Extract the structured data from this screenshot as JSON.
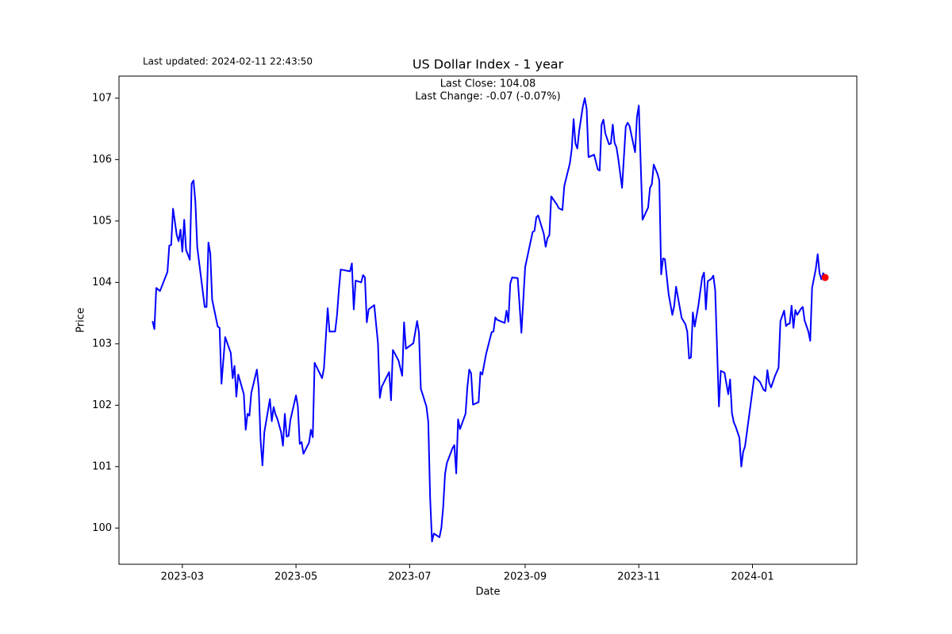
{
  "chart_data": {
    "type": "line",
    "title": "US Dollar Index - 1 year",
    "subtitle": "Last updated: 2024-02-11 22:43:50",
    "annotations": [
      "Last Close: 104.08",
      "Last Change: -0.07 (-0.07%)"
    ],
    "xlabel": "Date",
    "ylabel": "Price",
    "color": "#0000ff",
    "x": [
      "2023-02-13",
      "2023-02-14",
      "2023-02-15",
      "2023-02-17",
      "2023-02-21",
      "2023-02-22",
      "2023-02-23",
      "2023-02-24",
      "2023-02-26",
      "2023-02-27",
      "2023-02-28",
      "2023-03-01",
      "2023-03-02",
      "2023-03-03",
      "2023-03-05",
      "2023-03-06",
      "2023-03-07",
      "2023-03-08",
      "2023-03-09",
      "2023-03-13",
      "2023-03-14",
      "2023-03-15",
      "2023-03-16",
      "2023-03-17",
      "2023-03-20",
      "2023-03-21",
      "2023-03-22",
      "2023-03-24",
      "2023-03-27",
      "2023-03-28",
      "2023-03-29",
      "2023-03-30",
      "2023-03-31",
      "2023-04-03",
      "2023-04-04",
      "2023-04-05",
      "2023-04-06",
      "2023-04-07",
      "2023-04-10",
      "2023-04-11",
      "2023-04-12",
      "2023-04-13",
      "2023-04-14",
      "2023-04-17",
      "2023-04-18",
      "2023-04-19",
      "2023-04-20",
      "2023-04-21",
      "2023-04-23",
      "2023-04-24",
      "2023-04-25",
      "2023-04-26",
      "2023-04-27",
      "2023-04-28",
      "2023-05-01",
      "2023-05-02",
      "2023-05-03",
      "2023-05-04",
      "2023-05-05",
      "2023-05-08",
      "2023-05-09",
      "2023-05-10",
      "2023-05-11",
      "2023-05-15",
      "2023-05-16",
      "2023-05-18",
      "2023-05-19",
      "2023-05-22",
      "2023-05-23",
      "2023-05-24",
      "2023-05-25",
      "2023-05-30",
      "2023-05-31",
      "2023-06-01",
      "2023-06-02",
      "2023-06-05",
      "2023-06-06",
      "2023-06-07",
      "2023-06-08",
      "2023-06-09",
      "2023-06-12",
      "2023-06-14",
      "2023-06-15",
      "2023-06-16",
      "2023-06-20",
      "2023-06-21",
      "2023-06-22",
      "2023-06-25",
      "2023-06-27",
      "2023-06-28",
      "2023-06-29",
      "2023-07-03",
      "2023-07-05",
      "2023-07-06",
      "2023-07-07",
      "2023-07-10",
      "2023-07-11",
      "2023-07-12",
      "2023-07-13",
      "2023-07-14",
      "2023-07-17",
      "2023-07-18",
      "2023-07-19",
      "2023-07-20",
      "2023-07-21",
      "2023-07-24",
      "2023-07-25",
      "2023-07-26",
      "2023-07-27",
      "2023-07-28",
      "2023-07-31",
      "2023-08-01",
      "2023-08-02",
      "2023-08-03",
      "2023-08-04",
      "2023-08-07",
      "2023-08-08",
      "2023-08-09",
      "2023-08-11",
      "2023-08-14",
      "2023-08-15",
      "2023-08-16",
      "2023-08-17",
      "2023-08-21",
      "2023-08-22",
      "2023-08-23",
      "2023-08-24",
      "2023-08-25",
      "2023-08-28",
      "2023-08-30",
      "2023-09-01",
      "2023-09-05",
      "2023-09-06",
      "2023-09-07",
      "2023-09-08",
      "2023-09-11",
      "2023-09-12",
      "2023-09-13",
      "2023-09-14",
      "2023-09-15",
      "2023-09-18",
      "2023-09-19",
      "2023-09-21",
      "2023-09-22",
      "2023-09-25",
      "2023-09-26",
      "2023-09-27",
      "2023-09-28",
      "2023-09-29",
      "2023-09-30",
      "2023-10-02",
      "2023-10-03",
      "2023-10-04",
      "2023-10-05",
      "2023-10-08",
      "2023-10-10",
      "2023-10-11",
      "2023-10-12",
      "2023-10-13",
      "2023-10-14",
      "2023-10-16",
      "2023-10-17",
      "2023-10-18",
      "2023-10-19",
      "2023-10-20",
      "2023-10-21",
      "2023-10-23",
      "2023-10-25",
      "2023-10-26",
      "2023-10-27",
      "2023-10-30",
      "2023-10-31",
      "2023-11-01",
      "2023-11-03",
      "2023-11-06",
      "2023-11-07",
      "2023-11-08",
      "2023-11-09",
      "2023-11-11",
      "2023-11-12",
      "2023-11-13",
      "2023-11-14",
      "2023-11-15",
      "2023-11-17",
      "2023-11-19",
      "2023-11-20",
      "2023-11-21",
      "2023-11-24",
      "2023-11-26",
      "2023-11-27",
      "2023-11-28",
      "2023-11-29",
      "2023-11-30",
      "2023-12-01",
      "2023-12-03",
      "2023-12-05",
      "2023-12-06",
      "2023-12-07",
      "2023-12-08",
      "2023-12-10",
      "2023-12-11",
      "2023-12-12",
      "2023-12-14",
      "2023-12-15",
      "2023-12-17",
      "2023-12-19",
      "2023-12-20",
      "2023-12-21",
      "2023-12-22",
      "2023-12-23",
      "2023-12-25",
      "2023-12-26",
      "2023-12-27",
      "2023-12-28",
      "2023-12-31",
      "2024-01-02",
      "2024-01-05",
      "2024-01-07",
      "2024-01-08",
      "2024-01-09",
      "2024-01-10",
      "2024-01-11",
      "2024-01-13",
      "2024-01-15",
      "2024-01-16",
      "2024-01-18",
      "2024-01-19",
      "2024-01-20",
      "2024-01-21",
      "2024-01-22",
      "2024-01-23",
      "2024-01-24",
      "2024-01-25",
      "2024-01-27",
      "2024-01-28",
      "2024-01-29",
      "2024-01-31",
      "2024-02-01",
      "2024-02-02",
      "2024-02-04",
      "2024-02-05",
      "2024-02-06",
      "2024-02-07",
      "2024-02-08",
      "2024-02-09"
    ],
    "values": [
      103.37,
      103.24,
      103.91,
      103.86,
      104.17,
      104.6,
      104.61,
      105.2,
      104.77,
      104.67,
      104.86,
      104.5,
      105.02,
      104.53,
      104.37,
      105.61,
      105.66,
      105.31,
      104.57,
      103.6,
      103.6,
      104.65,
      104.47,
      103.72,
      103.28,
      103.26,
      102.35,
      103.11,
      102.85,
      102.44,
      102.64,
      102.14,
      102.5,
      102.18,
      101.6,
      101.86,
      101.83,
      102.2,
      102.58,
      102.27,
      101.43,
      101.02,
      101.56,
      102.1,
      101.74,
      101.97,
      101.85,
      101.78,
      101.56,
      101.34,
      101.86,
      101.49,
      101.5,
      101.76,
      102.16,
      101.98,
      101.37,
      101.4,
      101.21,
      101.39,
      101.6,
      101.48,
      102.69,
      102.44,
      102.6,
      103.58,
      103.2,
      103.2,
      103.46,
      103.87,
      104.21,
      104.18,
      104.31,
      103.56,
      104.03,
      104.0,
      104.12,
      104.08,
      103.35,
      103.56,
      103.63,
      103.01,
      102.12,
      102.3,
      102.54,
      102.08,
      102.9,
      102.73,
      102.48,
      103.35,
      102.92,
      103.01,
      103.37,
      103.18,
      102.27,
      101.98,
      101.73,
      100.49,
      99.78,
      99.91,
      99.85,
      100.0,
      100.34,
      100.88,
      101.06,
      101.3,
      101.35,
      100.89,
      101.77,
      101.61,
      101.86,
      102.3,
      102.58,
      102.52,
      102.01,
      102.05,
      102.54,
      102.5,
      102.83,
      103.19,
      103.2,
      103.43,
      103.39,
      103.34,
      103.54,
      103.36,
      103.98,
      104.08,
      104.07,
      103.18,
      104.25,
      104.82,
      104.84,
      105.06,
      105.09,
      104.79,
      104.58,
      104.72,
      104.77,
      105.4,
      105.27,
      105.21,
      105.18,
      105.57,
      105.94,
      106.17,
      106.66,
      106.26,
      106.18,
      106.47,
      106.87,
      107.0,
      106.83,
      106.04,
      106.08,
      105.84,
      105.82,
      106.57,
      106.65,
      106.43,
      106.25,
      106.26,
      106.57,
      106.27,
      106.2,
      106.01,
      105.54,
      106.54,
      106.6,
      106.55,
      106.12,
      106.69,
      106.88,
      105.02,
      105.22,
      105.54,
      105.6,
      105.92,
      105.77,
      105.66,
      104.13,
      104.39,
      104.38,
      103.81,
      103.47,
      103.62,
      103.93,
      103.42,
      103.32,
      103.2,
      102.76,
      102.78,
      103.51,
      103.28,
      103.63,
      104.08,
      104.16,
      103.56,
      104.02,
      104.06,
      104.11,
      103.87,
      101.98,
      102.56,
      102.53,
      102.18,
      102.42,
      101.87,
      101.72,
      101.65,
      101.47,
      101.0,
      101.24,
      101.33,
      102.01,
      102.47,
      102.38,
      102.25,
      102.23,
      102.57,
      102.36,
      102.29,
      102.47,
      102.61,
      103.37,
      103.54,
      103.29,
      103.32,
      103.33,
      103.62,
      103.26,
      103.55,
      103.47,
      103.57,
      103.6,
      103.38,
      103.2,
      103.05,
      103.91,
      104.22,
      104.46,
      104.15,
      104.05,
      104.15,
      104.08
    ],
    "last_point": {
      "x": "2024-02-09",
      "y": 104.08,
      "color": "#ff0000"
    },
    "xlim": [
      "2023-01-26",
      "2024-02-26"
    ],
    "xticks": [
      {
        "value": "2023-03-01",
        "label": "2023-03"
      },
      {
        "value": "2023-05-01",
        "label": "2023-05"
      },
      {
        "value": "2023-07-01",
        "label": "2023-07"
      },
      {
        "value": "2023-09-01",
        "label": "2023-09"
      },
      {
        "value": "2023-11-01",
        "label": "2023-11"
      },
      {
        "value": "2024-01-01",
        "label": "2024-01"
      }
    ],
    "ylim": [
      99.41,
      107.36
    ],
    "yticks": [
      100,
      101,
      102,
      103,
      104,
      105,
      106,
      107
    ],
    "grid": false
  }
}
